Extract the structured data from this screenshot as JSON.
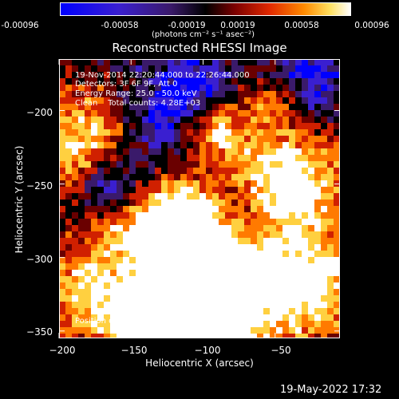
{
  "colorbar": {
    "ticks": [
      "-0.00096",
      "-0.00058",
      "-0.00019",
      "0.00019",
      "0.00058",
      "0.00096"
    ],
    "units": "(photons cm⁻² s⁻¹ asec⁻²)",
    "min": -0.00096,
    "max": 0.00096
  },
  "chart_data": {
    "type": "heatmap",
    "title": "Reconstructed RHESSI Image",
    "xlabel": "Heliocentric X (arcsec)",
    "ylabel": "Heliocentric Y (arcsec)",
    "xlim": [
      -200,
      -5
    ],
    "ylim": [
      -355,
      -165
    ],
    "xticks": [
      -200,
      -150,
      -100,
      -50
    ],
    "yticks": [
      -200,
      -250,
      -300,
      -350
    ],
    "xtick_labels": [
      "−200",
      "−150",
      "−100",
      "−50"
    ],
    "ytick_labels": [
      "−200",
      "−250",
      "−300",
      "−350"
    ],
    "colormap": [
      "#0000ff",
      "#3a1fd0",
      "#3a1a6a",
      "#000000",
      "#6a0000",
      "#d02000",
      "#ff7a00",
      "#ffd040",
      "#ffffff"
    ],
    "peak": [
      -83,
      -320
    ],
    "annotations": {
      "line1": "19-Nov-2014 22:20:44.000 to 22:26:44.000",
      "line2": "Detectors: 3F 6F 9F, Att 0",
      "line3": "Energy Range: 25.0 - 50.0 keV",
      "line4": "Clean    Total counts: 4.28E+03",
      "peak_label": "Position of Peak = [-83,-320]"
    }
  },
  "timestamp": "19-May-2022 17:32"
}
